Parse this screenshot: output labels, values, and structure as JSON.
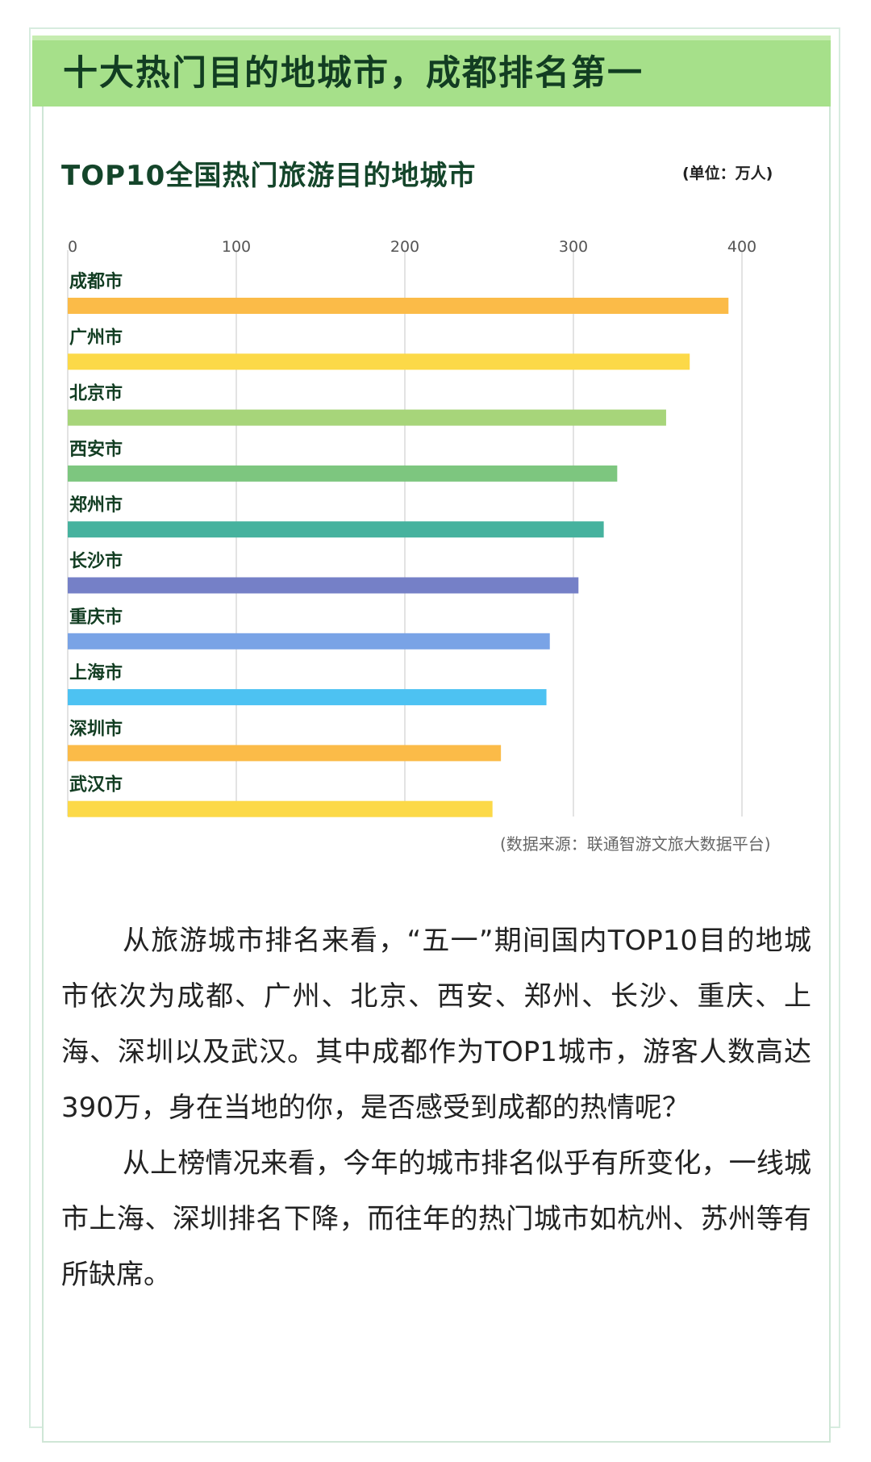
{
  "header": {
    "title": "十大热门目的地城市，成都排名第一"
  },
  "chart_data": {
    "type": "bar",
    "orientation": "horizontal",
    "title": "TOP10全国热门旅游目的地城市",
    "unit": "(单位：万人)",
    "xlim": [
      0,
      430
    ],
    "ticks": [
      0,
      100,
      200,
      300,
      400
    ],
    "tick_labels": [
      "0",
      "100",
      "200",
      "300",
      "400"
    ],
    "grid": true,
    "categories": [
      "成都市",
      "广州市",
      "北京市",
      "西安市",
      "郑州市",
      "长沙市",
      "重庆市",
      "上海市",
      "深圳市",
      "武汉市"
    ],
    "values": [
      392,
      369,
      355,
      326,
      318,
      303,
      286,
      284,
      257,
      252
    ],
    "colors": [
      "#FBBB48",
      "#FCD948",
      "#A7D57A",
      "#7DC67F",
      "#46B29E",
      "#7580C7",
      "#79A3E6",
      "#4DC2F2",
      "#FBBB48",
      "#FCD948"
    ],
    "source": "(数据来源：联通智游文旅大数据平台)"
  },
  "article": {
    "paragraphs": [
      "从旅游城市排名来看，“五一”期间国内TOP10目的地城市依次为成都、广州、北京、西安、郑州、长沙、重庆、上海、深圳以及武汉。其中成都作为TOP1城市，游客人数高达390万，身在当地的你，是否感受到成都的热情呢？",
      "从上榜情况来看，今年的城市排名似乎有所变化，一线城市上海、深圳排名下降，而往年的热门城市如杭州、苏州等有所缺席。"
    ]
  }
}
